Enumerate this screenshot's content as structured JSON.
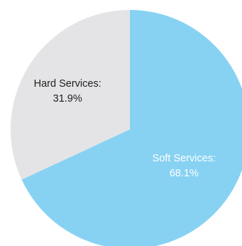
{
  "chart_data": {
    "type": "pie",
    "title": "",
    "slices": [
      {
        "category": "Soft Services",
        "label": "Soft Services:",
        "value": 68.1,
        "value_label": "68.1%",
        "color": "#87d2f2",
        "label_color": "#ffffff"
      },
      {
        "category": "Hard Services",
        "label": "Hard Services:",
        "value": 31.9,
        "value_label": "31.9%",
        "color": "#e4e4e6",
        "label_color": "#1e1e1e"
      }
    ],
    "start_position": "top",
    "direction": "clockwise",
    "legend": "none",
    "labels": "inside-slices"
  }
}
